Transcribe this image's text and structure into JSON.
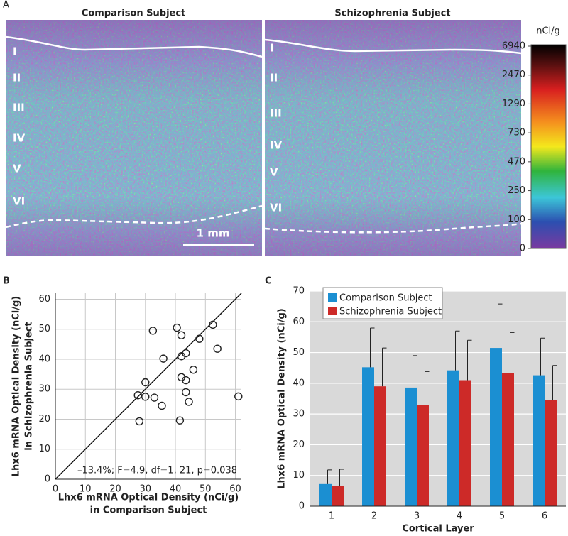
{
  "panel_a": {
    "panel": "A",
    "titles": [
      "Comparison Subject",
      "Schizophrenia Subject"
    ],
    "layers": [
      "I",
      "II",
      "III",
      "IV",
      "V",
      "VI"
    ],
    "scale_bar": "1 mm",
    "colorbar": {
      "unit": "nCi/g",
      "ticks": [
        6940,
        2470,
        1290,
        730,
        470,
        250,
        100,
        0
      ]
    }
  },
  "chart_data": [
    {
      "type": "scatter",
      "panel": "B",
      "x": [
        32.5,
        40.5,
        52.5,
        42,
        48,
        54,
        42,
        43.5,
        36,
        42,
        46,
        43.5,
        30,
        43.5,
        27.5,
        30,
        33,
        35.5,
        44.5,
        61,
        28,
        41.5
      ],
      "values": [
        49.5,
        50.5,
        51.5,
        48,
        46.8,
        43.5,
        41,
        42,
        40.2,
        34,
        36.5,
        33,
        32.3,
        29,
        28,
        27.5,
        27.2,
        24.5,
        25.8,
        27.6,
        19.3,
        19.6
      ],
      "xlim": [
        0,
        62
      ],
      "ylim": [
        0,
        62
      ],
      "xticks": [
        0,
        10,
        20,
        30,
        40,
        50,
        60
      ],
      "yticks": [
        0,
        10,
        20,
        30,
        40,
        50,
        60
      ],
      "xlabel": [
        "Lhx6 mRNA Optical Density (nCi/g)",
        "in Comparison Subject"
      ],
      "ylabel": [
        "Lhx6 mRNA Optical Density (nCi/g)",
        "in Schizophrenia Subject"
      ],
      "annotation": "–13.4%; F=4.9, df=1, 21, p=0.038",
      "grid": true,
      "color": "#222222"
    },
    {
      "type": "bar",
      "panel": "C",
      "categories": [
        "1",
        "2",
        "3",
        "4",
        "5",
        "6"
      ],
      "series": [
        {
          "name": "Comparison Subject",
          "color": "#1b8fd2",
          "values": [
            7.2,
            45.2,
            38.6,
            44.2,
            51.5,
            42.6
          ],
          "errors": [
            4.6,
            12.8,
            10.4,
            12.8,
            14.3,
            12.1
          ]
        },
        {
          "name": "Schizophrenia Subject",
          "color": "#cd2a28",
          "values": [
            6.5,
            39,
            32.9,
            41,
            43.4,
            34.6
          ],
          "errors": [
            5.5,
            12.5,
            10.9,
            13,
            13.1,
            11.2
          ]
        }
      ],
      "ylim": [
        0,
        70
      ],
      "yticks": [
        0,
        10,
        20,
        30,
        40,
        50,
        60,
        70
      ],
      "xlabel": "Cortical Layer",
      "ylabel": "Lhx6 mRNA Optical Density (nCi/g)",
      "grid": true,
      "legend": "upper-left"
    }
  ]
}
